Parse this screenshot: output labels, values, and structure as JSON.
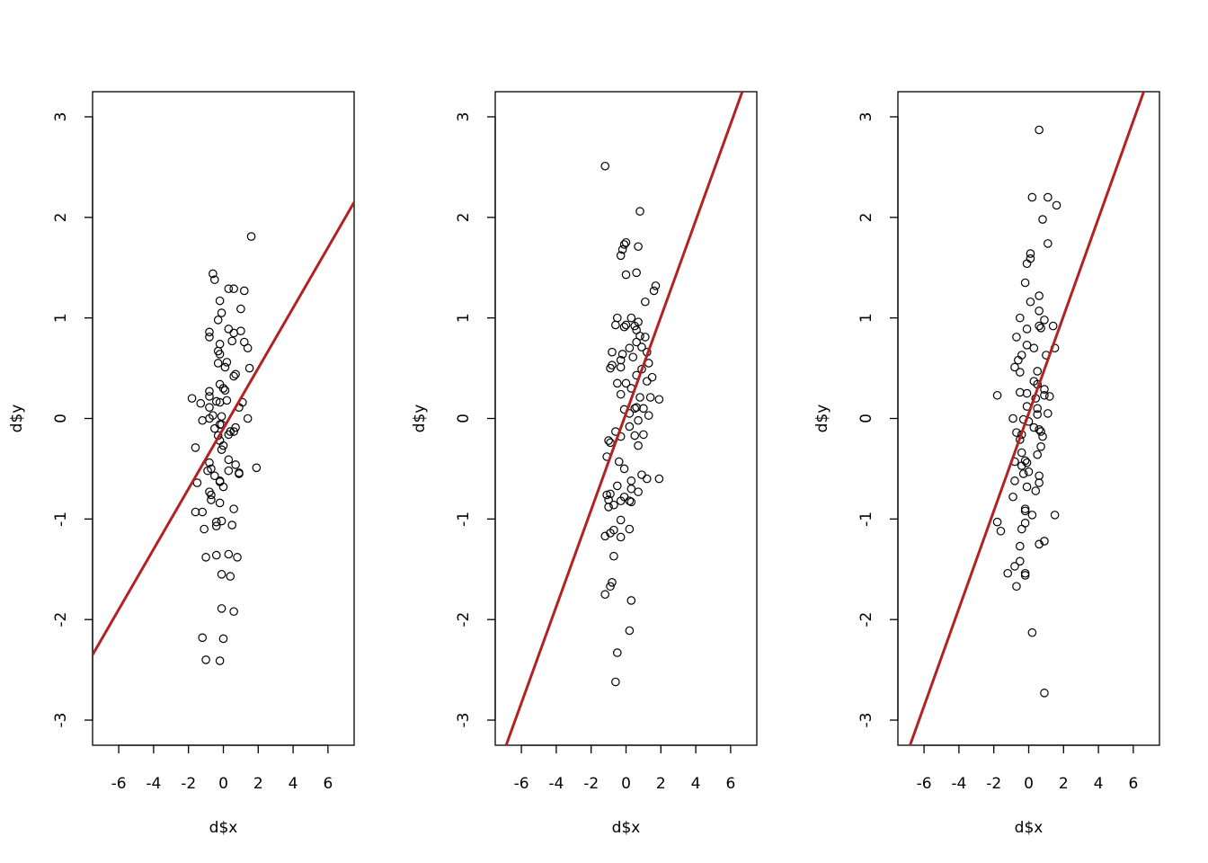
{
  "figure": {
    "layout": "1 row x 3 panels",
    "background": "#ffffff"
  },
  "chart_data": [
    {
      "type": "scatter",
      "title": "",
      "xlabel": "d$x",
      "ylabel": "d$y",
      "xlim": [
        -7.5,
        7.5
      ],
      "ylim": [
        -3.25,
        3.25
      ],
      "xticks": [
        -6,
        -4,
        -2,
        0,
        2,
        4,
        6
      ],
      "xtick_labels": [
        "-6",
        "-4",
        "-2",
        "0",
        "2",
        "4",
        "6"
      ],
      "yticks": [
        -3,
        -2,
        -1,
        0,
        1,
        2,
        3
      ],
      "ytick_labels": [
        "-3",
        "-2",
        "-1",
        "0",
        "1",
        "2",
        "3"
      ],
      "line": {
        "intercept": -0.1,
        "slope": 0.3,
        "color": "#b22222"
      },
      "points": [
        [
          1.6,
          1.81
        ],
        [
          -0.6,
          1.44
        ],
        [
          -0.5,
          1.38
        ],
        [
          0.3,
          1.29
        ],
        [
          0.6,
          1.29
        ],
        [
          1.2,
          1.27
        ],
        [
          -0.2,
          1.17
        ],
        [
          1.0,
          1.09
        ],
        [
          -0.1,
          1.05
        ],
        [
          -0.3,
          0.98
        ],
        [
          0.3,
          0.89
        ],
        [
          1.0,
          0.87
        ],
        [
          -0.8,
          0.86
        ],
        [
          0.6,
          0.85
        ],
        [
          -0.8,
          0.81
        ],
        [
          0.5,
          0.77
        ],
        [
          1.2,
          0.76
        ],
        [
          -0.2,
          0.74
        ],
        [
          1.4,
          0.7
        ],
        [
          -0.3,
          0.67
        ],
        [
          -0.2,
          0.64
        ],
        [
          0.2,
          0.56
        ],
        [
          -0.3,
          0.55
        ],
        [
          0.1,
          0.51
        ],
        [
          1.5,
          0.5
        ],
        [
          0.7,
          0.44
        ],
        [
          0.6,
          0.42
        ],
        [
          -0.2,
          0.34
        ],
        [
          0.0,
          0.3
        ],
        [
          0.1,
          0.28
        ],
        [
          -0.8,
          0.27
        ],
        [
          -0.8,
          0.22
        ],
        [
          -1.8,
          0.2
        ],
        [
          0.2,
          0.18
        ],
        [
          -0.4,
          0.17
        ],
        [
          -0.2,
          0.16
        ],
        [
          1.1,
          0.16
        ],
        [
          -1.3,
          0.15
        ],
        [
          -0.8,
          0.11
        ],
        [
          0.9,
          0.11
        ],
        [
          -0.6,
          0.03
        ],
        [
          -0.1,
          0.02
        ],
        [
          -1.2,
          -0.02
        ],
        [
          -0.8,
          0.0
        ],
        [
          1.4,
          0.0
        ],
        [
          -0.2,
          -0.06
        ],
        [
          -0.1,
          -0.06
        ],
        [
          0.7,
          -0.09
        ],
        [
          -0.5,
          -0.1
        ],
        [
          0.4,
          -0.13
        ],
        [
          0.6,
          -0.13
        ],
        [
          0.3,
          -0.16
        ],
        [
          -0.3,
          -0.17
        ],
        [
          -0.2,
          -0.22
        ],
        [
          0.0,
          -0.27
        ],
        [
          -1.6,
          -0.29
        ],
        [
          -0.1,
          -0.31
        ],
        [
          0.3,
          -0.41
        ],
        [
          -0.8,
          -0.44
        ],
        [
          0.7,
          -0.46
        ],
        [
          1.9,
          -0.49
        ],
        [
          -0.7,
          -0.5
        ],
        [
          -0.9,
          -0.52
        ],
        [
          0.3,
          -0.52
        ],
        [
          0.9,
          -0.54
        ],
        [
          0.9,
          -0.55
        ],
        [
          -0.5,
          -0.57
        ],
        [
          -0.2,
          -0.62
        ],
        [
          -1.5,
          -0.64
        ],
        [
          -0.2,
          -0.63
        ],
        [
          0.0,
          -0.68
        ],
        [
          -0.8,
          -0.73
        ],
        [
          -0.7,
          -0.76
        ],
        [
          -0.7,
          -0.81
        ],
        [
          -0.2,
          -0.84
        ],
        [
          0.6,
          -0.9
        ],
        [
          -1.6,
          -0.93
        ],
        [
          -1.2,
          -0.93
        ],
        [
          -0.1,
          -1.02
        ],
        [
          -0.4,
          -1.03
        ],
        [
          -0.4,
          -1.07
        ],
        [
          0.5,
          -1.06
        ],
        [
          -1.1,
          -1.1
        ],
        [
          0.3,
          -1.35
        ],
        [
          -0.4,
          -1.36
        ],
        [
          -1.0,
          -1.38
        ],
        [
          0.8,
          -1.38
        ],
        [
          -0.1,
          -1.55
        ],
        [
          0.4,
          -1.57
        ],
        [
          -0.1,
          -1.89
        ],
        [
          0.6,
          -1.92
        ],
        [
          -1.2,
          -2.18
        ],
        [
          0.0,
          -2.19
        ],
        [
          -1.0,
          -2.4
        ],
        [
          -0.2,
          -2.41
        ]
      ]
    },
    {
      "type": "scatter",
      "title": "",
      "xlabel": "d$x",
      "ylabel": "d$y",
      "xlim": [
        -7.5,
        7.5
      ],
      "ylim": [
        -3.25,
        3.25
      ],
      "xticks": [
        -6,
        -4,
        -2,
        0,
        2,
        4,
        6
      ],
      "xtick_labels": [
        "-6",
        "-4",
        "-2",
        "0",
        "2",
        "4",
        "6"
      ],
      "yticks": [
        -3,
        -2,
        -1,
        0,
        1,
        2,
        3
      ],
      "ytick_labels": [
        "-3",
        "-2",
        "-1",
        "0",
        "1",
        "2",
        "3"
      ],
      "line": {
        "intercept": 0.05,
        "slope": 0.48,
        "color": "#b22222"
      },
      "points": [
        [
          -1.2,
          2.51
        ],
        [
          0.8,
          2.06
        ],
        [
          0.0,
          1.75
        ],
        [
          -0.1,
          1.73
        ],
        [
          0.7,
          1.71
        ],
        [
          -0.2,
          1.68
        ],
        [
          -0.3,
          1.62
        ],
        [
          0.6,
          1.45
        ],
        [
          0.0,
          1.43
        ],
        [
          1.7,
          1.32
        ],
        [
          1.6,
          1.27
        ],
        [
          1.1,
          1.16
        ],
        [
          -0.5,
          1.0
        ],
        [
          0.3,
          1.0
        ],
        [
          0.7,
          0.96
        ],
        [
          -0.6,
          0.93
        ],
        [
          0.0,
          0.93
        ],
        [
          0.5,
          0.92
        ],
        [
          -0.1,
          0.91
        ],
        [
          0.6,
          0.88
        ],
        [
          0.8,
          0.82
        ],
        [
          1.1,
          0.81
        ],
        [
          0.6,
          0.76
        ],
        [
          0.9,
          0.71
        ],
        [
          0.2,
          0.7
        ],
        [
          -0.8,
          0.66
        ],
        [
          1.2,
          0.66
        ],
        [
          -0.2,
          0.64
        ],
        [
          0.4,
          0.61
        ],
        [
          -0.3,
          0.58
        ],
        [
          -0.8,
          0.53
        ],
        [
          -0.3,
          0.51
        ],
        [
          -0.9,
          0.5
        ],
        [
          1.3,
          0.55
        ],
        [
          0.9,
          0.49
        ],
        [
          0.6,
          0.43
        ],
        [
          1.5,
          0.41
        ],
        [
          1.2,
          0.37
        ],
        [
          0.0,
          0.35
        ],
        [
          -0.5,
          0.35
        ],
        [
          0.3,
          0.3
        ],
        [
          -0.3,
          0.24
        ],
        [
          1.4,
          0.21
        ],
        [
          0.8,
          0.21
        ],
        [
          1.9,
          0.19
        ],
        [
          0.6,
          0.11
        ],
        [
          0.5,
          0.1
        ],
        [
          -0.1,
          0.09
        ],
        [
          1.0,
          0.1
        ],
        [
          0.2,
          0.05
        ],
        [
          1.3,
          0.03
        ],
        [
          0.7,
          -0.02
        ],
        [
          0.2,
          -0.08
        ],
        [
          -0.6,
          -0.13
        ],
        [
          0.5,
          -0.17
        ],
        [
          1.0,
          -0.16
        ],
        [
          -0.3,
          -0.18
        ],
        [
          -0.9,
          -0.24
        ],
        [
          -1.0,
          -0.22
        ],
        [
          0.7,
          -0.27
        ],
        [
          -1.1,
          -0.38
        ],
        [
          -0.4,
          -0.43
        ],
        [
          -0.1,
          -0.5
        ],
        [
          0.9,
          -0.56
        ],
        [
          1.2,
          -0.6
        ],
        [
          1.9,
          -0.6
        ],
        [
          0.3,
          -0.62
        ],
        [
          -0.5,
          -0.67
        ],
        [
          0.3,
          -0.7
        ],
        [
          0.7,
          -0.73
        ],
        [
          -1.1,
          -0.76
        ],
        [
          -0.9,
          -0.75
        ],
        [
          -0.1,
          -0.78
        ],
        [
          -1.0,
          -0.81
        ],
        [
          -0.3,
          -0.82
        ],
        [
          0.2,
          -0.82
        ],
        [
          0.3,
          -0.83
        ],
        [
          -0.7,
          -0.86
        ],
        [
          -1.0,
          -0.88
        ],
        [
          -0.3,
          -1.01
        ],
        [
          0.2,
          -1.1
        ],
        [
          -0.9,
          -1.14
        ],
        [
          -0.7,
          -1.11
        ],
        [
          -0.3,
          -1.18
        ],
        [
          -1.2,
          -1.17
        ],
        [
          -0.7,
          -1.37
        ],
        [
          -0.8,
          -1.63
        ],
        [
          -0.9,
          -1.67
        ],
        [
          -1.2,
          -1.75
        ],
        [
          0.3,
          -1.81
        ],
        [
          0.2,
          -2.11
        ],
        [
          -0.5,
          -2.33
        ],
        [
          -0.6,
          -2.62
        ]
      ]
    },
    {
      "type": "scatter",
      "title": "",
      "xlabel": "d$x",
      "ylabel": "d$y",
      "xlim": [
        -7.5,
        7.5
      ],
      "ylim": [
        -3.25,
        3.25
      ],
      "xticks": [
        -6,
        -4,
        -2,
        0,
        2,
        4,
        6
      ],
      "xtick_labels": [
        "-6",
        "-4",
        "-2",
        "0",
        "2",
        "4",
        "6"
      ],
      "yticks": [
        -3,
        -2,
        -1,
        0,
        1,
        2,
        3
      ],
      "ytick_labels": [
        "-3",
        "-2",
        "-1",
        "0",
        "1",
        "2",
        "3"
      ],
      "line": {
        "intercept": 0.05,
        "slope": 0.485,
        "color": "#b22222"
      },
      "points": [
        [
          0.6,
          2.87
        ],
        [
          0.2,
          2.2
        ],
        [
          1.1,
          2.2
        ],
        [
          1.6,
          2.12
        ],
        [
          0.8,
          1.98
        ],
        [
          1.1,
          1.74
        ],
        [
          0.1,
          1.64
        ],
        [
          0.1,
          1.59
        ],
        [
          -0.1,
          1.54
        ],
        [
          -0.2,
          1.35
        ],
        [
          0.6,
          1.22
        ],
        [
          0.1,
          1.16
        ],
        [
          0.6,
          1.07
        ],
        [
          -0.5,
          1.0
        ],
        [
          0.6,
          0.92
        ],
        [
          0.9,
          0.98
        ],
        [
          1.4,
          0.92
        ],
        [
          0.7,
          0.9
        ],
        [
          -0.1,
          0.89
        ],
        [
          -0.7,
          0.81
        ],
        [
          -0.1,
          0.73
        ],
        [
          0.3,
          0.7
        ],
        [
          1.5,
          0.7
        ],
        [
          -0.4,
          0.63
        ],
        [
          1.0,
          0.63
        ],
        [
          -0.6,
          0.58
        ],
        [
          -0.8,
          0.51
        ],
        [
          -0.5,
          0.46
        ],
        [
          0.5,
          0.47
        ],
        [
          0.3,
          0.37
        ],
        [
          0.5,
          0.34
        ],
        [
          0.9,
          0.29
        ],
        [
          -0.5,
          0.26
        ],
        [
          -0.1,
          0.25
        ],
        [
          0.9,
          0.23
        ],
        [
          1.2,
          0.22
        ],
        [
          0.4,
          0.2
        ],
        [
          -1.8,
          0.23
        ],
        [
          0.5,
          0.1
        ],
        [
          -0.1,
          0.12
        ],
        [
          1.1,
          0.05
        ],
        [
          0.5,
          0.04
        ],
        [
          -0.9,
          0.0
        ],
        [
          -0.3,
          -0.01
        ],
        [
          0.0,
          -0.03
        ],
        [
          0.3,
          -0.09
        ],
        [
          0.6,
          -0.11
        ],
        [
          0.7,
          -0.13
        ],
        [
          -0.7,
          -0.14
        ],
        [
          -0.4,
          -0.16
        ],
        [
          0.8,
          -0.18
        ],
        [
          -0.5,
          -0.21
        ],
        [
          0.7,
          -0.28
        ],
        [
          -0.4,
          -0.34
        ],
        [
          0.5,
          -0.36
        ],
        [
          -0.2,
          -0.42
        ],
        [
          -0.1,
          -0.44
        ],
        [
          -0.8,
          -0.43
        ],
        [
          -0.4,
          -0.47
        ],
        [
          0.0,
          -0.53
        ],
        [
          -0.3,
          -0.55
        ],
        [
          0.6,
          -0.57
        ],
        [
          -0.8,
          -0.62
        ],
        [
          0.6,
          -0.64
        ],
        [
          -0.1,
          -0.68
        ],
        [
          0.4,
          -0.72
        ],
        [
          -0.9,
          -0.78
        ],
        [
          -0.2,
          -0.9
        ],
        [
          -0.2,
          -0.92
        ],
        [
          1.5,
          -0.96
        ],
        [
          0.2,
          -0.96
        ],
        [
          -1.8,
          -1.03
        ],
        [
          -0.2,
          -1.04
        ],
        [
          -0.4,
          -1.1
        ],
        [
          -1.6,
          -1.12
        ],
        [
          0.9,
          -1.22
        ],
        [
          0.6,
          -1.25
        ],
        [
          -0.5,
          -1.27
        ],
        [
          -0.5,
          -1.42
        ],
        [
          -0.8,
          -1.47
        ],
        [
          -1.2,
          -1.54
        ],
        [
          -0.2,
          -1.54
        ],
        [
          -0.2,
          -1.56
        ],
        [
          -0.7,
          -1.67
        ],
        [
          0.2,
          -2.13
        ],
        [
          0.9,
          -2.73
        ]
      ]
    }
  ]
}
